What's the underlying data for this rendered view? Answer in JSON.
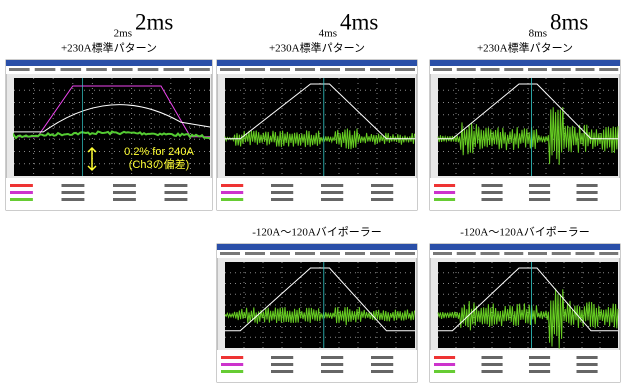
{
  "headers": [
    {
      "small": "2ms",
      "large": "2ms"
    },
    {
      "small": "4ms",
      "large": "4ms"
    },
    {
      "small": "8ms",
      "large": "8ms"
    }
  ],
  "panels": [
    {
      "subtitle": "+230A標準パターン",
      "annotation": [
        "0.2% for 240A",
        "(Ch3の偏差)"
      ]
    },
    {
      "subtitle": "+230A標準パターン"
    },
    {
      "subtitle": "+230A標準パターン"
    },
    {
      "subtitle": "-120A～120Aバイポーラー"
    },
    {
      "subtitle": "-120A～120Aバイポーラー"
    }
  ]
}
